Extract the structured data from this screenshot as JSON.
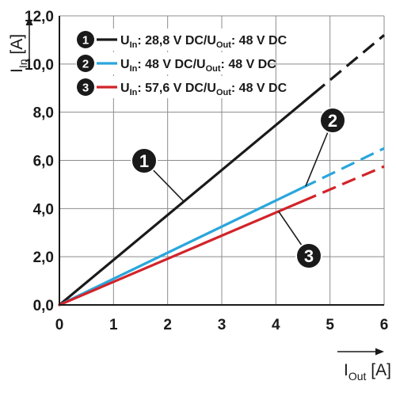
{
  "chart_data": {
    "type": "line",
    "xlabel": {
      "main": "I",
      "sub": "Out",
      "unit": " [A]"
    },
    "ylabel": {
      "main": "I",
      "sub": "In",
      "unit": " [A]"
    },
    "xlim": [
      0,
      6
    ],
    "ylim": [
      0,
      12
    ],
    "x_ticks": [
      "0",
      "1",
      "2",
      "3",
      "4",
      "5",
      "6"
    ],
    "y_ticks": [
      "0,0",
      "2,0",
      "4,0",
      "6,0",
      "8,0",
      "10,0",
      "12,0"
    ],
    "grid": true,
    "legend_position": "top-left",
    "series": [
      {
        "id": "1",
        "legend": {
          "a": "U",
          "a_sub": "In",
          "b": ": 28,8 V DC/U",
          "b_sub": "Out",
          "c": ": 48 V DC"
        },
        "color": "#1a1a1a",
        "x": [
          0,
          6
        ],
        "y": [
          0,
          11.2
        ],
        "solid_until_x": 4.7
      },
      {
        "id": "2",
        "legend": {
          "a": "U",
          "a_sub": "In",
          "b": ": 48 V DC/U",
          "b_sub": "Out",
          "c": ": 48 V DC"
        },
        "color": "#2aa6dc",
        "x": [
          0,
          6
        ],
        "y": [
          0,
          6.5
        ],
        "solid_until_x": 4.5
      },
      {
        "id": "3",
        "legend": {
          "a": "U",
          "a_sub": "In",
          "b": ": 57,6 V DC/U",
          "b_sub": "Out",
          "c": ": 48 V DC"
        },
        "color": "#d2232a",
        "x": [
          0,
          6
        ],
        "y": [
          0,
          5.75
        ],
        "solid_until_x": 4.5
      }
    ]
  }
}
